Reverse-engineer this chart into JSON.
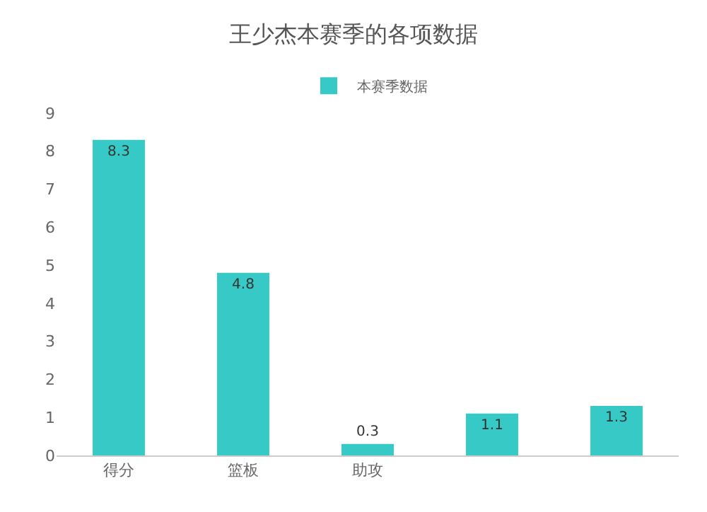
{
  "chart_data": {
    "type": "bar",
    "title": "王少杰本赛季的各项数据",
    "categories": [
      "得分",
      "篮板",
      "助攻",
      null,
      null
    ],
    "series": [
      {
        "name": "本赛季数据",
        "color": "#36c9c6",
        "values": [
          8.3,
          4.8,
          0.3,
          1.1,
          1.3
        ]
      }
    ],
    "ylim": [
      0,
      9
    ],
    "yticks": [
      0,
      1,
      2,
      3,
      4,
      5,
      6,
      7,
      8,
      9
    ],
    "grid": false,
    "legend": "top",
    "data_labels": true
  }
}
